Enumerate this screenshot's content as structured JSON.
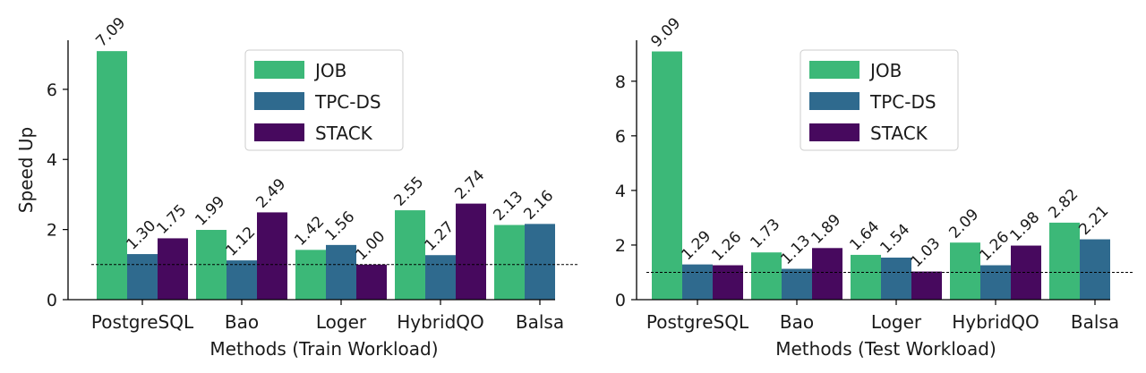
{
  "colors": {
    "JOB": "#3cb878",
    "TPC-DS": "#2f6a8e",
    "STACK": "#47095e"
  },
  "chart_data": [
    {
      "type": "bar",
      "title": "",
      "xlabel": "Methods (Train Workload)",
      "ylabel": "Speed Up",
      "ylim": [
        0,
        7.4
      ],
      "yticks": [
        0,
        2,
        4,
        6
      ],
      "reference_line": 1.0,
      "legend_position": "top-center",
      "categories": [
        "PostgreSQL",
        "Bao",
        "Loger",
        "HybridQO",
        "Balsa"
      ],
      "series": [
        {
          "name": "JOB",
          "values": [
            7.09,
            1.99,
            1.42,
            2.55,
            2.13
          ],
          "labels": [
            "7.09",
            "1.99",
            "1.42",
            "2.55",
            "2.13"
          ]
        },
        {
          "name": "TPC-DS",
          "values": [
            1.3,
            1.12,
            1.56,
            1.27,
            2.16
          ],
          "labels": [
            "1.30",
            "1.12",
            "1.56",
            "1.27",
            "2.16"
          ]
        },
        {
          "name": "STACK",
          "values": [
            1.75,
            2.49,
            1.0,
            2.74,
            null
          ],
          "labels": [
            "1.75",
            "2.49",
            "1.00",
            "2.74",
            null
          ]
        }
      ]
    },
    {
      "type": "bar",
      "title": "",
      "xlabel": "Methods (Test Workload)",
      "ylabel": "",
      "ylim": [
        0,
        9.5
      ],
      "yticks": [
        0,
        2,
        4,
        6,
        8
      ],
      "reference_line": 1.0,
      "legend_position": "top-center",
      "categories": [
        "PostgreSQL",
        "Bao",
        "Loger",
        "HybridQO",
        "Balsa"
      ],
      "series": [
        {
          "name": "JOB",
          "values": [
            9.09,
            1.73,
            1.64,
            2.09,
            2.82
          ],
          "labels": [
            "9.09",
            "1.73",
            "1.64",
            "2.09",
            "2.82"
          ]
        },
        {
          "name": "TPC-DS",
          "values": [
            1.29,
            1.13,
            1.54,
            1.26,
            2.21
          ],
          "labels": [
            "1.29",
            "1.13",
            "1.54",
            "1.26",
            "2.21"
          ]
        },
        {
          "name": "STACK",
          "values": [
            1.26,
            1.89,
            1.03,
            1.98,
            null
          ],
          "labels": [
            "1.26",
            "1.89",
            "1.03",
            "1.98",
            null
          ]
        }
      ]
    }
  ]
}
